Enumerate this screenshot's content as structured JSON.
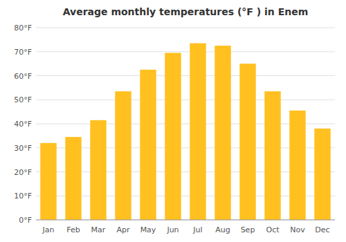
{
  "chart_data": {
    "type": "bar",
    "title": "Average monthly temperatures (°F ) in Enem",
    "categories": [
      "Jan",
      "Feb",
      "Mar",
      "Apr",
      "May",
      "Jun",
      "Jul",
      "Aug",
      "Sep",
      "Oct",
      "Nov",
      "Dec"
    ],
    "values": [
      32.0,
      34.5,
      41.5,
      53.5,
      62.5,
      69.5,
      73.5,
      72.5,
      65.0,
      53.5,
      45.5,
      38.0
    ],
    "color": "#FFC020",
    "ylim": [
      0,
      80
    ],
    "yticks": [
      {
        "value": 0,
        "label": "0°F"
      },
      {
        "value": 10,
        "label": "10°F"
      },
      {
        "value": 20,
        "label": "20°F"
      },
      {
        "value": 30,
        "label": "30°F"
      },
      {
        "value": 40,
        "label": "40°F"
      },
      {
        "value": 50,
        "label": "50°F"
      },
      {
        "value": 60,
        "label": "60°F"
      },
      {
        "value": 70,
        "label": "70°F"
      },
      {
        "value": 80,
        "label": "80°F"
      }
    ],
    "grid": true
  }
}
